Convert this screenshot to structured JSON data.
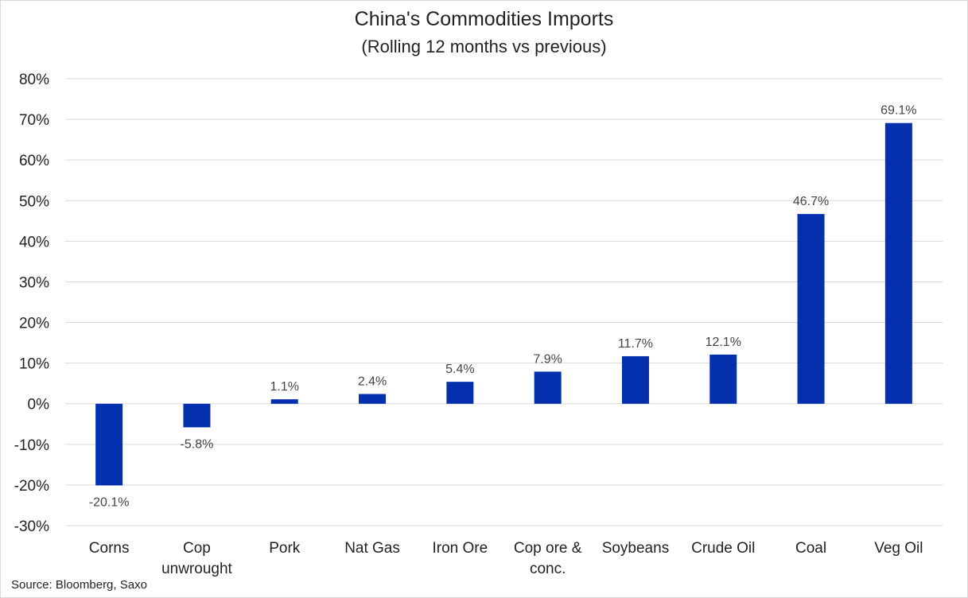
{
  "chart_data": {
    "type": "bar",
    "title": "China's Commodities Imports",
    "subtitle": "(Rolling 12 months vs previous)",
    "categories": [
      "Corns",
      "Cop unwrought",
      "Pork",
      "Nat Gas",
      "Iron Ore",
      "Cop ore & conc.",
      "Soybeans",
      "Crude Oil",
      "Coal",
      "Veg Oil"
    ],
    "category_lines": [
      [
        "Corns"
      ],
      [
        "Cop",
        "unwrought"
      ],
      [
        "Pork"
      ],
      [
        "Nat Gas"
      ],
      [
        "Iron Ore"
      ],
      [
        "Cop ore &",
        "conc."
      ],
      [
        "Soybeans"
      ],
      [
        "Crude Oil"
      ],
      [
        "Coal"
      ],
      [
        "Veg Oil"
      ]
    ],
    "values": [
      -20.1,
      -5.8,
      1.1,
      2.4,
      5.4,
      7.9,
      11.7,
      12.1,
      46.7,
      69.1
    ],
    "data_labels": [
      "-20.1%",
      "-5.8%",
      "1.1%",
      "2.4%",
      "5.4%",
      "7.9%",
      "11.7%",
      "12.1%",
      "46.7%",
      "69.1%"
    ],
    "ylim": [
      -30,
      80
    ],
    "yticks": [
      80,
      70,
      60,
      50,
      40,
      30,
      20,
      10,
      0,
      -10,
      -20,
      -30
    ],
    "ytick_labels": [
      "80%",
      "70%",
      "60%",
      "50%",
      "40%",
      "30%",
      "20%",
      "10%",
      "0%",
      "-10%",
      "-20%",
      "-30%"
    ],
    "xlabel": "",
    "ylabel": "",
    "grid": true,
    "bar_color": "#0530AD",
    "source": "Source: Bloomberg, Saxo"
  }
}
